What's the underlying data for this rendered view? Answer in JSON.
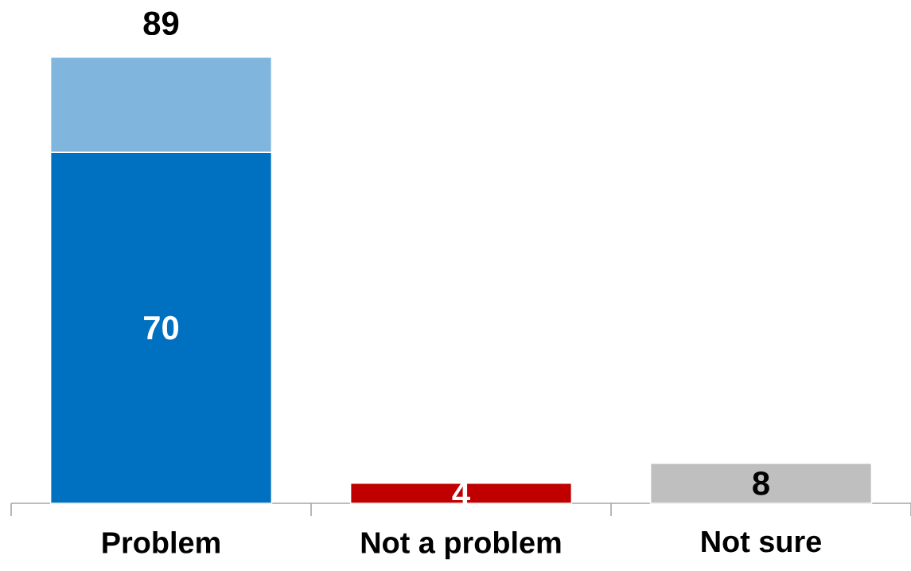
{
  "chart_data": {
    "type": "bar",
    "stacked": true,
    "categories": [
      "Problem",
      "Not a problem",
      "Not sure"
    ],
    "series": [
      {
        "colors": [
          "#0070c0",
          "#c00000",
          "#bfbfbf"
        ],
        "values": [
          70,
          4,
          8
        ],
        "value_labels": [
          "70",
          "4",
          "8"
        ]
      },
      {
        "color": "#80b6de",
        "values": [
          19,
          null,
          null
        ]
      }
    ],
    "totals": [
      "89",
      null,
      null
    ]
  }
}
